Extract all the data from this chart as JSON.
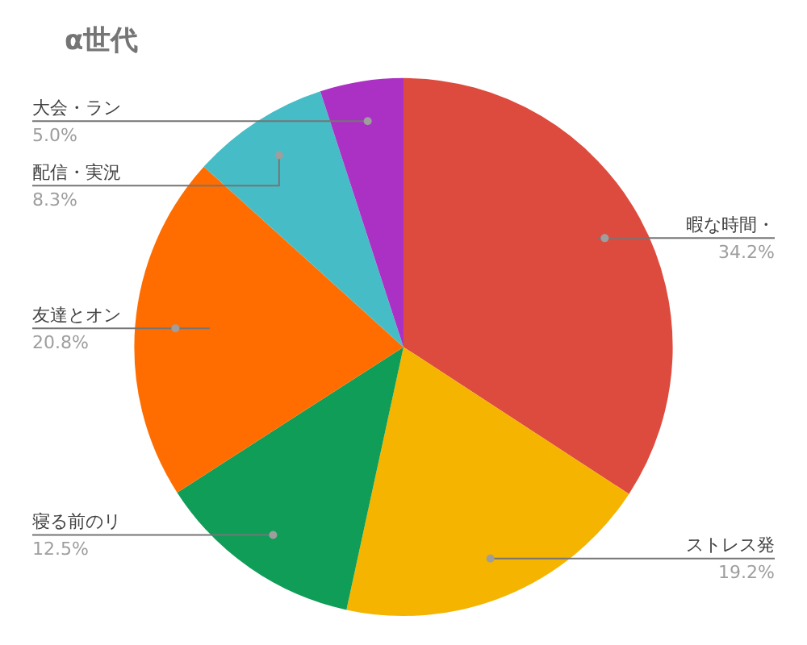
{
  "chart_data": {
    "type": "pie",
    "title": "α世代",
    "categories": [
      "暇な時間・",
      "ストレス発",
      "寝る前のリ",
      "友達とオン",
      "配信・実況",
      "大会・ラン"
    ],
    "values": [
      34.2,
      19.2,
      12.5,
      20.8,
      8.3,
      5.0
    ],
    "value_labels": [
      "34.2%",
      "19.2%",
      "12.5%",
      "20.8%",
      "8.3%",
      "5.0%"
    ],
    "colors": [
      "#dd4b3e",
      "#f4b400",
      "#0f9d58",
      "#ff6d00",
      "#46bdc6",
      "#ab30c4"
    ],
    "legend": false
  }
}
